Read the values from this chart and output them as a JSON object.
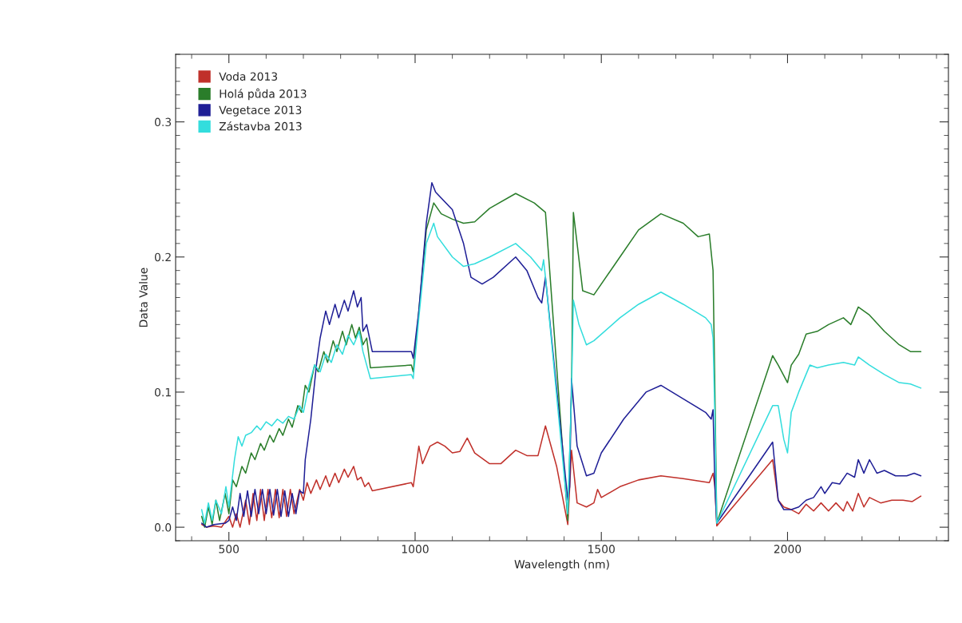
{
  "chart_data": {
    "type": "line",
    "xlabel": "Wavelength (nm)",
    "ylabel": "Data Value",
    "xlim": [
      357,
      2432
    ],
    "ylim": [
      -0.01,
      0.35
    ],
    "xticks": [
      500,
      1000,
      1500,
      2000
    ],
    "yticks": [
      {
        "value": 0,
        "label": "0.0"
      },
      0.1,
      0.2,
      0.3
    ],
    "grid": false,
    "legend": "top left",
    "marker": "none",
    "line_style": "solid",
    "series": [
      {
        "name": "Voda 2013",
        "color": "#c0302a",
        "x": [
          427,
          440,
          460,
          480,
          500,
          510,
          520,
          530,
          545,
          555,
          565,
          575,
          585,
          595,
          605,
          615,
          625,
          635,
          645,
          655,
          665,
          675,
          690,
          700,
          710,
          720,
          735,
          745,
          760,
          770,
          785,
          795,
          810,
          820,
          835,
          845,
          855,
          865,
          875,
          885,
          990,
          995,
          1005,
          1010,
          1020,
          1040,
          1060,
          1080,
          1100,
          1120,
          1140,
          1160,
          1200,
          1230,
          1270,
          1300,
          1330,
          1350,
          1380,
          1410,
          1420,
          1435,
          1460,
          1480,
          1490,
          1500,
          1550,
          1600,
          1660,
          1720,
          1790,
          1800,
          1805,
          1810,
          1960,
          1975,
          1990,
          2010,
          2030,
          2050,
          2070,
          2090,
          2110,
          2130,
          2150,
          2160,
          2175,
          2190,
          2205,
          2220,
          2250,
          2280,
          2310,
          2335,
          2358
        ],
        "values": [
          0.002,
          0.0,
          0.001,
          0.0,
          0.008,
          0.0,
          0.01,
          0.0,
          0.02,
          0.002,
          0.025,
          0.005,
          0.028,
          0.005,
          0.028,
          0.007,
          0.028,
          0.007,
          0.028,
          0.008,
          0.028,
          0.01,
          0.028,
          0.02,
          0.033,
          0.025,
          0.035,
          0.028,
          0.038,
          0.03,
          0.04,
          0.033,
          0.043,
          0.037,
          0.045,
          0.035,
          0.037,
          0.03,
          0.033,
          0.027,
          0.033,
          0.03,
          0.05,
          0.06,
          0.047,
          0.06,
          0.063,
          0.06,
          0.055,
          0.056,
          0.066,
          0.055,
          0.047,
          0.047,
          0.057,
          0.053,
          0.053,
          0.075,
          0.045,
          0.002,
          0.057,
          0.018,
          0.015,
          0.018,
          0.028,
          0.022,
          0.03,
          0.035,
          0.038,
          0.036,
          0.033,
          0.04,
          0.03,
          0.001,
          0.05,
          0.02,
          0.015,
          0.013,
          0.01,
          0.017,
          0.012,
          0.018,
          0.012,
          0.018,
          0.012,
          0.019,
          0.012,
          0.025,
          0.015,
          0.022,
          0.018,
          0.02,
          0.02,
          0.019,
          0.023
        ]
      },
      {
        "name": "Holá půda 2013",
        "color": "#2a7d2a",
        "x": [
          427,
          435,
          445,
          455,
          465,
          475,
          490,
          500,
          510,
          520,
          535,
          545,
          560,
          570,
          585,
          595,
          610,
          620,
          635,
          645,
          660,
          670,
          685,
          695,
          705,
          715,
          730,
          740,
          755,
          765,
          780,
          790,
          805,
          815,
          830,
          840,
          850,
          860,
          870,
          880,
          990,
          995,
          1010,
          1030,
          1050,
          1070,
          1100,
          1130,
          1160,
          1200,
          1270,
          1320,
          1350,
          1410,
          1420,
          1425,
          1450,
          1480,
          1550,
          1600,
          1660,
          1720,
          1760,
          1790,
          1800,
          1805,
          1810,
          1960,
          1975,
          2000,
          2010,
          2030,
          2050,
          2080,
          2110,
          2150,
          2170,
          2190,
          2220,
          2260,
          2300,
          2330,
          2358
        ],
        "values": [
          0.008,
          0.0,
          0.015,
          0.002,
          0.02,
          0.005,
          0.025,
          0.01,
          0.035,
          0.03,
          0.045,
          0.04,
          0.055,
          0.05,
          0.062,
          0.057,
          0.068,
          0.063,
          0.073,
          0.068,
          0.08,
          0.074,
          0.09,
          0.085,
          0.105,
          0.1,
          0.12,
          0.115,
          0.13,
          0.122,
          0.138,
          0.13,
          0.145,
          0.135,
          0.15,
          0.14,
          0.148,
          0.135,
          0.14,
          0.118,
          0.12,
          0.115,
          0.16,
          0.22,
          0.24,
          0.232,
          0.228,
          0.225,
          0.226,
          0.236,
          0.247,
          0.24,
          0.233,
          0.005,
          0.1,
          0.233,
          0.175,
          0.172,
          0.2,
          0.22,
          0.232,
          0.225,
          0.215,
          0.217,
          0.19,
          0.1,
          0.003,
          0.127,
          0.12,
          0.107,
          0.12,
          0.128,
          0.143,
          0.145,
          0.15,
          0.155,
          0.15,
          0.163,
          0.157,
          0.145,
          0.135,
          0.13,
          0.13
        ]
      },
      {
        "name": "Vegetace 2013",
        "color": "#1f1f96",
        "x": [
          427,
          440,
          460,
          490,
          500,
          510,
          520,
          530,
          540,
          550,
          560,
          570,
          580,
          590,
          600,
          610,
          620,
          630,
          640,
          650,
          660,
          670,
          680,
          690,
          700,
          705,
          720,
          735,
          745,
          760,
          770,
          785,
          795,
          810,
          820,
          835,
          845,
          855,
          860,
          870,
          885,
          990,
          995,
          1010,
          1030,
          1045,
          1055,
          1100,
          1130,
          1150,
          1180,
          1210,
          1270,
          1300,
          1330,
          1340,
          1350,
          1410,
          1415,
          1420,
          1435,
          1460,
          1480,
          1500,
          1560,
          1620,
          1660,
          1720,
          1780,
          1795,
          1800,
          1805,
          1810,
          1960,
          1975,
          1990,
          2010,
          2030,
          2050,
          2070,
          2090,
          2100,
          2120,
          2140,
          2160,
          2180,
          2190,
          2205,
          2220,
          2240,
          2260,
          2290,
          2320,
          2340,
          2358
        ],
        "values": [
          0.003,
          0.0,
          0.002,
          0.003,
          0.005,
          0.015,
          0.005,
          0.025,
          0.008,
          0.027,
          0.008,
          0.028,
          0.01,
          0.028,
          0.01,
          0.028,
          0.009,
          0.028,
          0.008,
          0.027,
          0.008,
          0.025,
          0.01,
          0.027,
          0.025,
          0.05,
          0.08,
          0.12,
          0.14,
          0.16,
          0.15,
          0.165,
          0.155,
          0.168,
          0.16,
          0.175,
          0.163,
          0.17,
          0.145,
          0.15,
          0.13,
          0.13,
          0.125,
          0.16,
          0.225,
          0.255,
          0.248,
          0.235,
          0.21,
          0.185,
          0.18,
          0.185,
          0.2,
          0.19,
          0.17,
          0.166,
          0.185,
          0.02,
          0.03,
          0.11,
          0.06,
          0.038,
          0.04,
          0.055,
          0.08,
          0.1,
          0.105,
          0.095,
          0.085,
          0.08,
          0.087,
          0.03,
          0.003,
          0.063,
          0.02,
          0.013,
          0.013,
          0.015,
          0.02,
          0.022,
          0.03,
          0.025,
          0.033,
          0.032,
          0.04,
          0.037,
          0.05,
          0.04,
          0.05,
          0.04,
          0.042,
          0.038,
          0.038,
          0.04,
          0.038
        ]
      },
      {
        "name": "Zástavba 2013",
        "color": "#33dddd",
        "x": [
          427,
          435,
          445,
          455,
          465,
          480,
          492,
          500,
          515,
          525,
          535,
          545,
          560,
          575,
          585,
          600,
          615,
          630,
          645,
          660,
          675,
          690,
          700,
          715,
          730,
          745,
          760,
          775,
          790,
          805,
          820,
          835,
          850,
          860,
          870,
          880,
          990,
          995,
          1010,
          1030,
          1050,
          1060,
          1100,
          1130,
          1160,
          1200,
          1270,
          1310,
          1340,
          1345,
          1350,
          1410,
          1420,
          1425,
          1440,
          1460,
          1480,
          1550,
          1600,
          1660,
          1720,
          1780,
          1795,
          1800,
          1805,
          1810,
          1960,
          1975,
          1990,
          2000,
          2010,
          2030,
          2060,
          2080,
          2110,
          2150,
          2180,
          2190,
          2220,
          2260,
          2300,
          2330,
          2358
        ],
        "values": [
          0.013,
          0.003,
          0.018,
          0.005,
          0.02,
          0.01,
          0.03,
          0.015,
          0.05,
          0.067,
          0.06,
          0.068,
          0.07,
          0.075,
          0.072,
          0.078,
          0.075,
          0.08,
          0.077,
          0.082,
          0.08,
          0.09,
          0.085,
          0.105,
          0.12,
          0.115,
          0.128,
          0.122,
          0.135,
          0.128,
          0.142,
          0.135,
          0.145,
          0.13,
          0.12,
          0.11,
          0.113,
          0.11,
          0.155,
          0.21,
          0.225,
          0.215,
          0.2,
          0.193,
          0.195,
          0.2,
          0.21,
          0.2,
          0.19,
          0.198,
          0.185,
          0.01,
          0.1,
          0.168,
          0.15,
          0.135,
          0.138,
          0.155,
          0.165,
          0.174,
          0.165,
          0.155,
          0.15,
          0.14,
          0.08,
          0.003,
          0.09,
          0.09,
          0.065,
          0.055,
          0.085,
          0.1,
          0.12,
          0.118,
          0.12,
          0.122,
          0.12,
          0.126,
          0.12,
          0.113,
          0.107,
          0.106,
          0.103
        ]
      }
    ]
  }
}
